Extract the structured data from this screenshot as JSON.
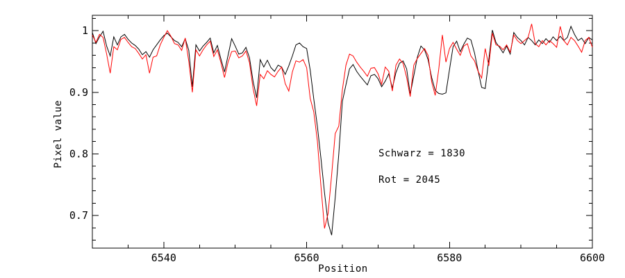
{
  "figure": {
    "background_color": "#ffffff",
    "frame_color": "#000000"
  },
  "chart_data": {
    "type": "line",
    "title": "",
    "xlabel": "Position",
    "ylabel": "Pixel value",
    "xlim": [
      6530,
      6600
    ],
    "ylim": [
      0.647,
      1.025
    ],
    "grid": false,
    "legend_position": "none",
    "x_major_ticks": [
      6540,
      6560,
      6580,
      6600
    ],
    "x_major_tick_labels": [
      "6540",
      "6560",
      "6580",
      "6600"
    ],
    "x_minor_tick_step": 5,
    "y_major_ticks": [
      0.7,
      0.8,
      0.9,
      1.0
    ],
    "y_major_tick_labels": [
      "0.7",
      "0.8",
      "0.9",
      "1"
    ],
    "y_minor_tick_step": 0.02,
    "annotations": [
      {
        "text": "Schwarz = 1830",
        "color": "#000000"
      },
      {
        "text": "Rot = 2045",
        "color": "#000000"
      }
    ],
    "x_start": 6530,
    "x_step": 0.5,
    "series": [
      {
        "name": "Schwarz",
        "color": "#000000",
        "values": [
          0.997,
          0.979,
          0.99,
          0.999,
          0.975,
          0.959,
          0.99,
          0.977,
          0.99,
          0.994,
          0.986,
          0.98,
          0.976,
          0.97,
          0.961,
          0.966,
          0.957,
          0.969,
          0.977,
          0.985,
          0.992,
          0.996,
          0.99,
          0.984,
          0.981,
          0.974,
          0.987,
          0.968,
          0.909,
          0.977,
          0.967,
          0.975,
          0.981,
          0.988,
          0.964,
          0.976,
          0.954,
          0.933,
          0.96,
          0.987,
          0.975,
          0.962,
          0.964,
          0.973,
          0.956,
          0.918,
          0.891,
          0.953,
          0.941,
          0.952,
          0.94,
          0.934,
          0.944,
          0.941,
          0.929,
          0.943,
          0.959,
          0.977,
          0.98,
          0.974,
          0.971,
          0.936,
          0.889,
          0.845,
          0.793,
          0.737,
          0.688,
          0.668,
          0.729,
          0.8,
          0.885,
          0.912,
          0.938,
          0.945,
          0.934,
          0.926,
          0.919,
          0.912,
          0.927,
          0.929,
          0.922,
          0.909,
          0.918,
          0.93,
          0.907,
          0.932,
          0.947,
          0.951,
          0.938,
          0.897,
          0.927,
          0.957,
          0.975,
          0.969,
          0.953,
          0.924,
          0.903,
          0.898,
          0.897,
          0.899,
          0.937,
          0.974,
          0.983,
          0.966,
          0.978,
          0.988,
          0.985,
          0.964,
          0.935,
          0.908,
          0.906,
          0.953,
          1.001,
          0.981,
          0.973,
          0.964,
          0.975,
          0.962,
          0.997,
          0.989,
          0.984,
          0.977,
          0.989,
          0.984,
          0.977,
          0.985,
          0.979,
          0.987,
          0.981,
          0.99,
          0.984,
          0.991,
          0.984,
          0.989,
          1.007,
          0.994,
          0.984,
          0.988,
          0.979,
          0.989,
          0.985
        ]
      },
      {
        "name": "Rot",
        "color": "#ff0000",
        "values": [
          0.993,
          0.981,
          0.994,
          0.989,
          0.962,
          0.931,
          0.974,
          0.969,
          0.986,
          0.989,
          0.981,
          0.974,
          0.971,
          0.963,
          0.954,
          0.961,
          0.931,
          0.957,
          0.959,
          0.977,
          0.989,
          1.0,
          0.991,
          0.979,
          0.977,
          0.968,
          0.988,
          0.95,
          0.9,
          0.969,
          0.959,
          0.969,
          0.977,
          0.983,
          0.958,
          0.969,
          0.948,
          0.924,
          0.949,
          0.966,
          0.967,
          0.956,
          0.959,
          0.967,
          0.948,
          0.906,
          0.878,
          0.929,
          0.922,
          0.935,
          0.929,
          0.925,
          0.934,
          0.941,
          0.914,
          0.902,
          0.933,
          0.951,
          0.949,
          0.953,
          0.94,
          0.89,
          0.868,
          0.821,
          0.748,
          0.679,
          0.703,
          0.766,
          0.833,
          0.845,
          0.904,
          0.944,
          0.962,
          0.959,
          0.949,
          0.941,
          0.934,
          0.926,
          0.939,
          0.94,
          0.93,
          0.913,
          0.941,
          0.934,
          0.902,
          0.944,
          0.954,
          0.947,
          0.924,
          0.893,
          0.944,
          0.955,
          0.963,
          0.971,
          0.96,
          0.917,
          0.895,
          0.938,
          0.993,
          0.949,
          0.971,
          0.981,
          0.97,
          0.96,
          0.975,
          0.979,
          0.959,
          0.951,
          0.934,
          0.923,
          0.971,
          0.943,
          0.996,
          0.977,
          0.975,
          0.969,
          0.977,
          0.965,
          0.993,
          0.984,
          0.979,
          0.984,
          0.989,
          1.011,
          0.979,
          0.974,
          0.984,
          0.977,
          0.984,
          0.979,
          0.973,
          1.007,
          0.984,
          0.977,
          0.989,
          0.984,
          0.975,
          0.965,
          0.984,
          0.989,
          0.973
        ]
      }
    ]
  }
}
